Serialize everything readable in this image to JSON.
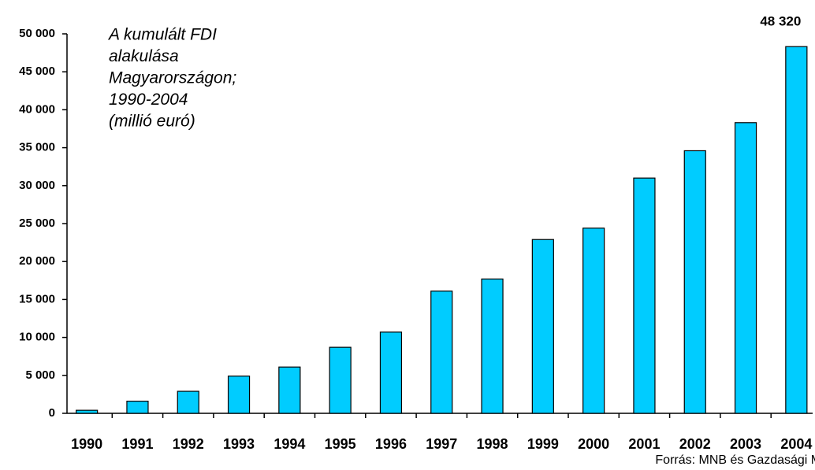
{
  "chart_data": {
    "type": "bar",
    "title_lines": [
      "A kumulált FDI",
      "alakulása",
      "Magyarországon;",
      "1990-2004",
      "(millió euró)"
    ],
    "source": "Forrás: MNB és Gazdasági Minisztérium",
    "categories": [
      "1990",
      "1991",
      "1992",
      "1993",
      "1994",
      "1995",
      "1996",
      "1997",
      "1998",
      "1999",
      "2000",
      "2001",
      "2002",
      "2003",
      "2004"
    ],
    "values": [
      400,
      1600,
      2900,
      4900,
      6100,
      8700,
      10700,
      16100,
      17700,
      22900,
      24400,
      31000,
      34600,
      38300,
      48320
    ],
    "value_labels": [
      null,
      null,
      null,
      null,
      null,
      null,
      null,
      null,
      null,
      null,
      null,
      null,
      null,
      null,
      "48 320"
    ],
    "color": "#00ccff",
    "ylim": [
      0,
      50000
    ],
    "yticks": [
      0,
      {
        "value": 5000,
        "label": "5 000"
      },
      {
        "value": 10000,
        "label": "10 000"
      },
      {
        "value": 15000,
        "label": "15 000"
      },
      {
        "value": 20000,
        "label": "20 000"
      },
      {
        "value": 25000,
        "label": "25 000"
      },
      {
        "value": 30000,
        "label": "30 000"
      },
      {
        "value": 35000,
        "label": "35 000"
      },
      {
        "value": 40000,
        "label": "40 000"
      },
      {
        "value": 45000,
        "label": "45 000"
      },
      {
        "value": 50000,
        "label": "50 000"
      }
    ]
  }
}
